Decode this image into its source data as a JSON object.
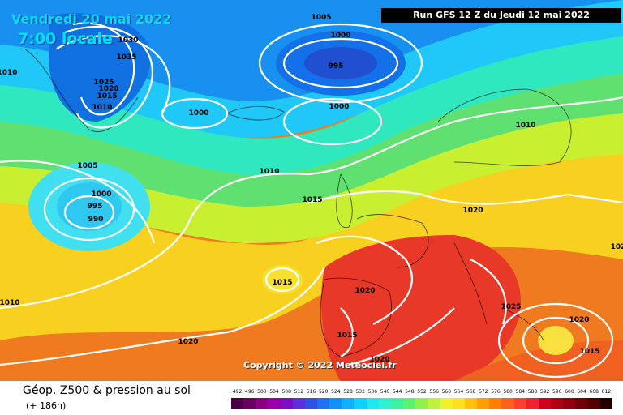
{
  "map": {
    "date": "Vendredi 20 mai 2022",
    "time": "7:00 locale",
    "run": "Run GFS 12 Z du Jeudi 12 mai 2022",
    "copyright": "Copyright © 2022 Meteociel.fr",
    "isobar_labels": [
      {
        "id": "iso-1005-top",
        "text": "1005"
      },
      {
        "id": "iso-1000-top",
        "text": "1000"
      },
      {
        "id": "iso-995-low",
        "text": "995"
      },
      {
        "id": "iso-1030",
        "text": "1030"
      },
      {
        "id": "iso-1035",
        "text": "1035"
      },
      {
        "id": "iso-1025-greenland",
        "text": "1025"
      },
      {
        "id": "iso-1020-greenland",
        "text": "1020"
      },
      {
        "id": "iso-1015-greenland",
        "text": "1015"
      },
      {
        "id": "iso-1010-greenland",
        "text": "1010"
      },
      {
        "id": "iso-1010-left",
        "text": "1010"
      },
      {
        "id": "iso-1000-iceland",
        "text": "1000"
      },
      {
        "id": "iso-1000-north",
        "text": "1000"
      },
      {
        "id": "iso-1010-scandinavia",
        "text": "1010"
      },
      {
        "id": "iso-1005-west",
        "text": "1005"
      },
      {
        "id": "iso-1000-west",
        "text": "1000"
      },
      {
        "id": "iso-995-west",
        "text": "995"
      },
      {
        "id": "iso-990-west",
        "text": "990"
      },
      {
        "id": "iso-1010-atlantic",
        "text": "1010"
      },
      {
        "id": "iso-1015-uk",
        "text": "1015"
      },
      {
        "id": "iso-1020-central",
        "text": "1020"
      },
      {
        "id": "iso-1020-right",
        "text": "102"
      },
      {
        "id": "iso-1015-azores",
        "text": "1015"
      },
      {
        "id": "iso-1010-sw",
        "text": "1010"
      },
      {
        "id": "iso-1020-iberia",
        "text": "1020"
      },
      {
        "id": "iso-1015-iberia",
        "text": "1015"
      },
      {
        "id": "iso-1020-south",
        "text": "1020"
      },
      {
        "id": "iso-1020-med",
        "text": "1020"
      },
      {
        "id": "iso-1025-balkans",
        "text": "1025"
      },
      {
        "id": "iso-1020-greece",
        "text": "1020"
      },
      {
        "id": "iso-1015-turkey",
        "text": "1015"
      }
    ]
  },
  "legend": {
    "title": "Géop. Z500 & pression au sol",
    "subtitle": "(+ 186h)",
    "scale_values": [
      "492",
      "496",
      "500",
      "504",
      "508",
      "512",
      "516",
      "520",
      "524",
      "528",
      "532",
      "536",
      "540",
      "544",
      "548",
      "552",
      "556",
      "560",
      "564",
      "568",
      "572",
      "576",
      "580",
      "584",
      "588",
      "592",
      "596",
      "600",
      "604",
      "608",
      "612"
    ],
    "scale_colors": [
      "#4b0045",
      "#6a0060",
      "#8a0080",
      "#9b00a8",
      "#7a10c0",
      "#5a30d8",
      "#3050e0",
      "#2070f0",
      "#1090f8",
      "#10b0ff",
      "#10d0ff",
      "#20e8f0",
      "#30f0d0",
      "#40f0a0",
      "#60f070",
      "#90f050",
      "#c0f040",
      "#f0f030",
      "#ffe020",
      "#ffc010",
      "#ffa000",
      "#ff8000",
      "#ff6020",
      "#ff4030",
      "#f02030",
      "#d00020",
      "#b00018",
      "#900010",
      "#700008",
      "#500000",
      "#200000"
    ]
  }
}
